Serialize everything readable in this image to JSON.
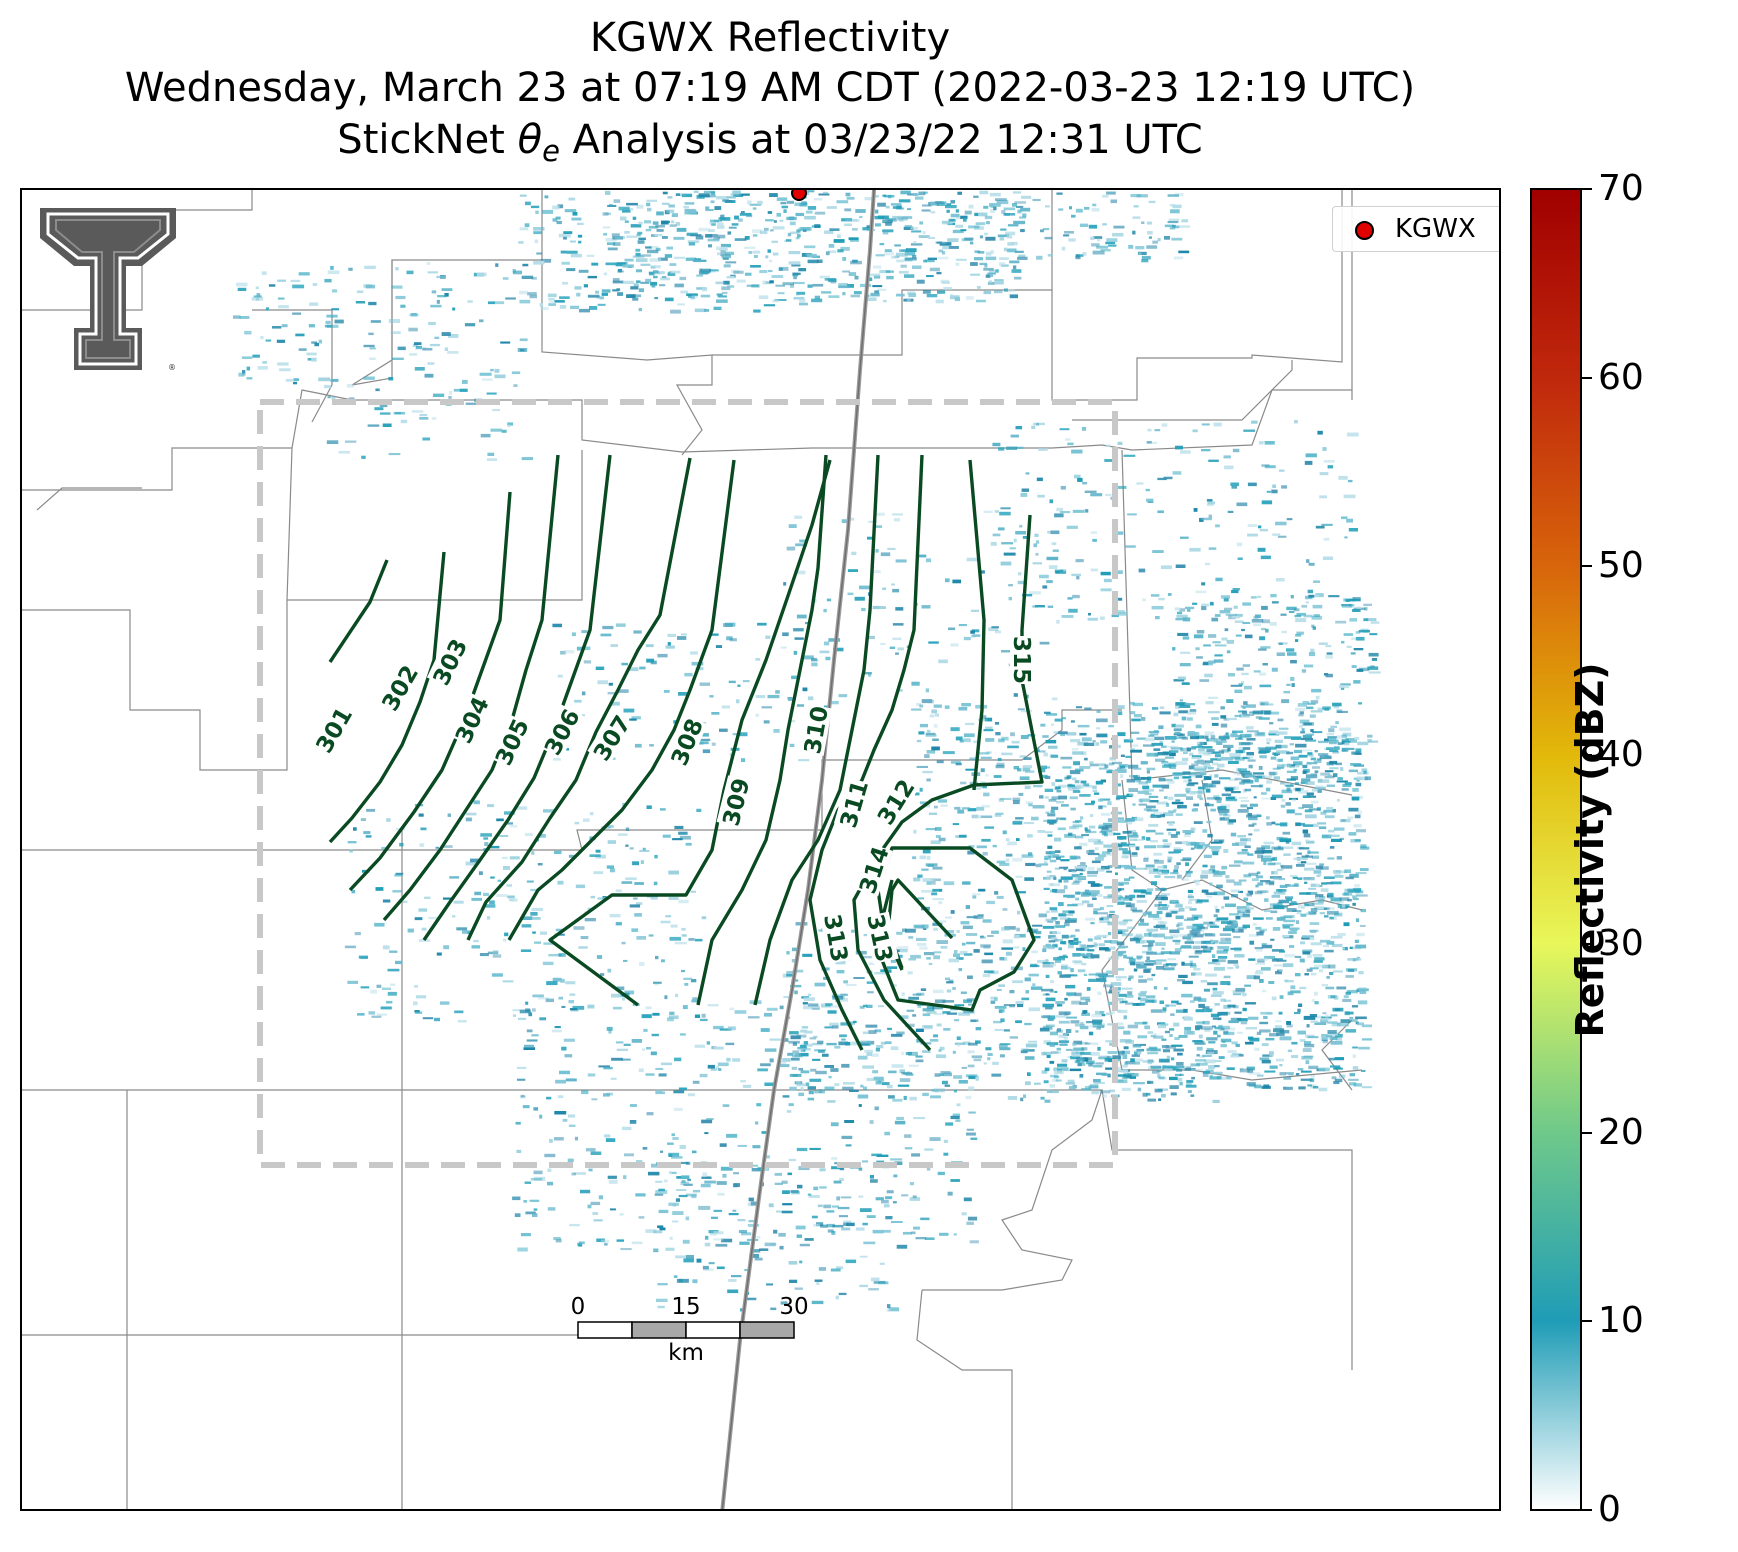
{
  "title": {
    "line1": "KGWX Reflectivity",
    "line2": "Wednesday, March 23 at 07:19 AM CDT (2022-03-23 12:19 UTC)",
    "line3_pre": "StickNet ",
    "line3_symbol": "θ",
    "line3_sub": "e",
    "line3_post": " Analysis at 03/23/22 12:31 UTC"
  },
  "legend": {
    "label": "KGWX",
    "marker_color": "#e00000"
  },
  "colorbar": {
    "title": "Reflectivity (dBZ)",
    "ticks": [
      "0",
      "10",
      "20",
      "30",
      "40",
      "50",
      "60",
      "70"
    ],
    "range": [
      0,
      70
    ],
    "colors": [
      "#ffffff",
      "#1f9cb6",
      "#6fc98a",
      "#e8f75a",
      "#e2b90a",
      "#d8650b",
      "#c0280c",
      "#a10000"
    ]
  },
  "scale_bar": {
    "labels": [
      "0",
      "15",
      "30"
    ],
    "unit": "km"
  },
  "contours": {
    "color": "#0a4a22",
    "labels": [
      "301",
      "302",
      "303",
      "304",
      "305",
      "306",
      "307",
      "308",
      "309",
      "310",
      "311",
      "312",
      "314",
      "313",
      "313",
      "315"
    ]
  },
  "features": {
    "radar_site": "KGWX",
    "logo": "texas-tech-double-t-logo",
    "analysis_box": "dashed gray analysis domain outline",
    "roads": "interstate highway line",
    "county_borders": "thin gray county outlines"
  }
}
